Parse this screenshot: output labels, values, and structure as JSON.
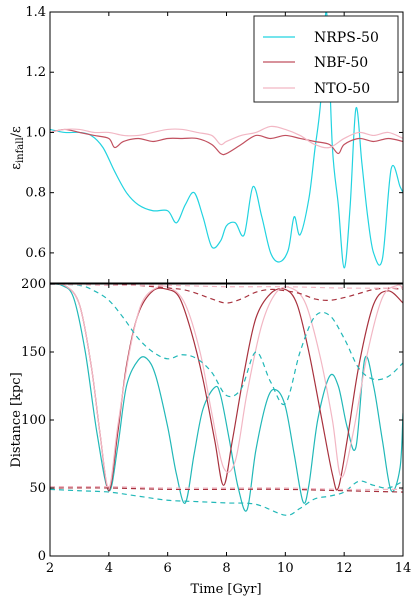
{
  "chart_data": [
    {
      "type": "line",
      "ylabel": "ε_infall/ε",
      "xlim": [
        2,
        14
      ],
      "ylim": [
        0.5,
        1.4
      ],
      "xticks": [
        2,
        4,
        6,
        8,
        10,
        12,
        14
      ],
      "yticks": [
        0.6,
        0.8,
        1.0,
        1.2,
        1.4
      ],
      "ytick_labels": [
        "0.6",
        "0.8",
        "1.0",
        "1.2",
        "1.4"
      ],
      "legend": {
        "position": "top-right"
      },
      "series": [
        {
          "name": "NRPS-50",
          "color": "#22d3e0",
          "x": [
            2.0,
            2.5,
            3.0,
            3.4,
            3.8,
            4.2,
            4.6,
            5.0,
            5.5,
            6.0,
            6.3,
            6.6,
            6.9,
            7.2,
            7.5,
            7.8,
            8.0,
            8.3,
            8.6,
            8.9,
            9.2,
            9.5,
            9.8,
            10.1,
            10.3,
            10.5,
            10.8,
            11.0,
            11.2,
            11.4,
            11.6,
            11.8,
            12.0,
            12.2,
            12.4,
            12.6,
            12.8,
            13.0,
            13.3,
            13.6,
            13.9,
            14.0
          ],
          "y": [
            1.01,
            1.0,
            1.0,
            0.99,
            0.95,
            0.87,
            0.8,
            0.76,
            0.74,
            0.74,
            0.7,
            0.76,
            0.8,
            0.72,
            0.62,
            0.64,
            0.69,
            0.7,
            0.66,
            0.82,
            0.72,
            0.6,
            0.57,
            0.61,
            0.72,
            0.66,
            0.78,
            0.94,
            1.1,
            1.4,
            0.95,
            0.76,
            0.55,
            0.75,
            1.08,
            0.9,
            0.72,
            0.6,
            0.58,
            0.88,
            0.82,
            0.8
          ]
        },
        {
          "name": "NBF-50",
          "color": "#c1505f",
          "x": [
            2.0,
            2.5,
            3.0,
            3.5,
            4.0,
            4.2,
            4.5,
            5.0,
            5.5,
            6.0,
            6.5,
            7.0,
            7.5,
            7.8,
            8.0,
            8.5,
            9.0,
            9.5,
            10.0,
            10.5,
            11.0,
            11.5,
            11.8,
            12.0,
            12.5,
            13.0,
            13.5,
            14.0
          ],
          "y": [
            1.0,
            1.01,
            1.0,
            0.99,
            0.98,
            0.95,
            0.97,
            0.98,
            0.97,
            0.98,
            0.98,
            0.98,
            0.96,
            0.93,
            0.93,
            0.96,
            0.99,
            0.98,
            0.99,
            0.98,
            0.97,
            0.96,
            0.93,
            0.96,
            0.98,
            0.97,
            0.98,
            0.97
          ]
        },
        {
          "name": "NTO-50",
          "color": "#f2b7c4",
          "x": [
            2.0,
            2.5,
            3.0,
            3.5,
            4.0,
            4.5,
            5.0,
            5.5,
            6.0,
            6.5,
            7.0,
            7.5,
            7.8,
            8.0,
            8.5,
            9.0,
            9.5,
            10.0,
            10.5,
            11.0,
            11.5,
            12.0,
            12.5,
            13.0,
            13.5,
            14.0
          ],
          "y": [
            1.0,
            1.01,
            1.01,
            1.0,
            1.0,
            0.99,
            0.99,
            1.0,
            1.01,
            1.01,
            1.0,
            0.99,
            0.96,
            0.97,
            0.99,
            1.0,
            1.02,
            1.01,
            0.99,
            0.96,
            0.95,
            0.98,
            1.0,
            0.99,
            1.0,
            0.98
          ]
        }
      ]
    },
    {
      "type": "line",
      "xlabel": "Time [Gyr]",
      "ylabel": "Distance [kpc]",
      "xlim": [
        2,
        14
      ],
      "ylim": [
        0,
        200
      ],
      "xticks": [
        2,
        4,
        6,
        8,
        10,
        12,
        14
      ],
      "yticks": [
        0,
        50,
        100,
        150,
        200
      ],
      "series": [
        {
          "name": "NRPS-50",
          "style": "solid",
          "color": "#22b8b8",
          "x": [
            2.0,
            2.4,
            2.8,
            3.2,
            3.6,
            4.0,
            4.3,
            4.6,
            5.0,
            5.3,
            5.6,
            6.0,
            6.3,
            6.6,
            6.9,
            7.2,
            7.6,
            7.8,
            8.1,
            8.4,
            8.7,
            9.0,
            9.4,
            9.7,
            10.0,
            10.3,
            10.6,
            10.8,
            11.1,
            11.5,
            11.8,
            12.1,
            12.4,
            12.7,
            13.0,
            13.3,
            13.6,
            13.9,
            14.0
          ],
          "y": [
            200,
            199,
            190,
            150,
            90,
            48,
            80,
            125,
            144,
            145,
            132,
            95,
            60,
            39,
            75,
            108,
            124,
            118,
            85,
            50,
            34,
            78,
            116,
            122,
            110,
            75,
            40,
            52,
            100,
            132,
            125,
            95,
            80,
            145,
            125,
            85,
            48,
            65,
            105
          ]
        },
        {
          "name": "NBF-50",
          "style": "solid",
          "color": "#a8323e",
          "x": [
            2.0,
            2.5,
            3.0,
            3.4,
            3.7,
            4.0,
            4.3,
            4.6,
            5.0,
            5.5,
            6.0,
            6.4,
            6.8,
            7.2,
            7.6,
            7.9,
            8.2,
            8.6,
            9.0,
            9.5,
            10.0,
            10.4,
            10.8,
            11.2,
            11.6,
            11.8,
            12.1,
            12.5,
            13.0,
            13.5,
            14.0
          ],
          "y": [
            200,
            199,
            185,
            140,
            90,
            48,
            90,
            140,
            178,
            195,
            196,
            190,
            165,
            130,
            85,
            52,
            85,
            135,
            175,
            193,
            196,
            185,
            150,
            105,
            60,
            50,
            85,
            140,
            185,
            195,
            186
          ]
        },
        {
          "name": "NTO-50",
          "style": "solid",
          "color": "#f2b7c4",
          "x": [
            2.0,
            2.5,
            3.0,
            3.4,
            3.7,
            4.0,
            4.3,
            4.7,
            5.1,
            5.6,
            6.1,
            6.6,
            7.1,
            7.5,
            7.9,
            8.3,
            8.7,
            9.2,
            9.7,
            10.2,
            10.7,
            11.2,
            11.6,
            11.9,
            12.3,
            12.8,
            13.3,
            13.8,
            14.0
          ],
          "y": [
            200,
            199,
            185,
            140,
            90,
            50,
            95,
            150,
            185,
            197,
            197,
            185,
            150,
            105,
            65,
            70,
            120,
            170,
            194,
            197,
            185,
            145,
            100,
            58,
            90,
            150,
            190,
            199,
            197
          ]
        },
        {
          "style": "dashed",
          "color": "#22b8b8",
          "x": [
            2.0,
            3.0,
            3.5,
            4.0,
            4.5,
            5.0,
            5.5,
            6.0,
            6.5,
            7.0,
            7.5,
            8.0,
            8.5,
            9.0,
            9.5,
            10.0,
            10.5,
            11.0,
            11.5,
            12.0,
            12.5,
            13.0,
            13.5,
            14.0
          ],
          "y": [
            200,
            199,
            195,
            188,
            175,
            160,
            150,
            145,
            148,
            145,
            135,
            118,
            123,
            150,
            128,
            112,
            150,
            176,
            177,
            160,
            138,
            130,
            132,
            142
          ]
        },
        {
          "style": "dashed",
          "color": "#22b8b8",
          "x": [
            2.0,
            3.0,
            4.0,
            5.0,
            6.0,
            7.0,
            8.0,
            9.0,
            10.0,
            10.5,
            11.0,
            11.5,
            12.0,
            12.5,
            13.0,
            13.5,
            14.0
          ],
          "y": [
            49,
            48,
            47,
            44,
            41,
            40,
            39,
            38,
            30,
            35,
            42,
            44,
            47,
            55,
            52,
            50,
            55
          ]
        },
        {
          "style": "dashed",
          "color": "#a8323e",
          "x": [
            2.0,
            3.0,
            4.0,
            5.0,
            6.0,
            6.5,
            7.0,
            7.5,
            8.0,
            8.5,
            9.0,
            9.5,
            10.0,
            10.5,
            11.0,
            11.5,
            12.0,
            12.5,
            13.0,
            13.5,
            14.0
          ],
          "y": [
            200,
            200,
            200,
            199,
            197,
            196,
            193,
            189,
            186,
            189,
            194,
            196,
            195,
            193,
            189,
            188,
            190,
            193,
            196,
            197,
            196
          ]
        },
        {
          "style": "dashed",
          "color": "#a8323e",
          "x": [
            2.0,
            4.0,
            6.0,
            8.0,
            10.0,
            12.0,
            14.0
          ],
          "y": [
            50,
            50,
            49,
            49,
            49,
            48,
            47
          ]
        },
        {
          "style": "dashed",
          "color": "#f2b7c4",
          "x": [
            2.0,
            4.0,
            6.0,
            8.0,
            10.0,
            12.0,
            14.0
          ],
          "y": [
            200,
            199,
            199,
            198,
            198,
            197,
            197
          ]
        },
        {
          "style": "dashed",
          "color": "#f2b7c4",
          "x": [
            2.0,
            4.0,
            6.0,
            8.0,
            10.0,
            12.0,
            14.0
          ],
          "y": [
            51,
            51,
            50,
            50,
            50,
            49,
            49
          ]
        }
      ]
    }
  ]
}
